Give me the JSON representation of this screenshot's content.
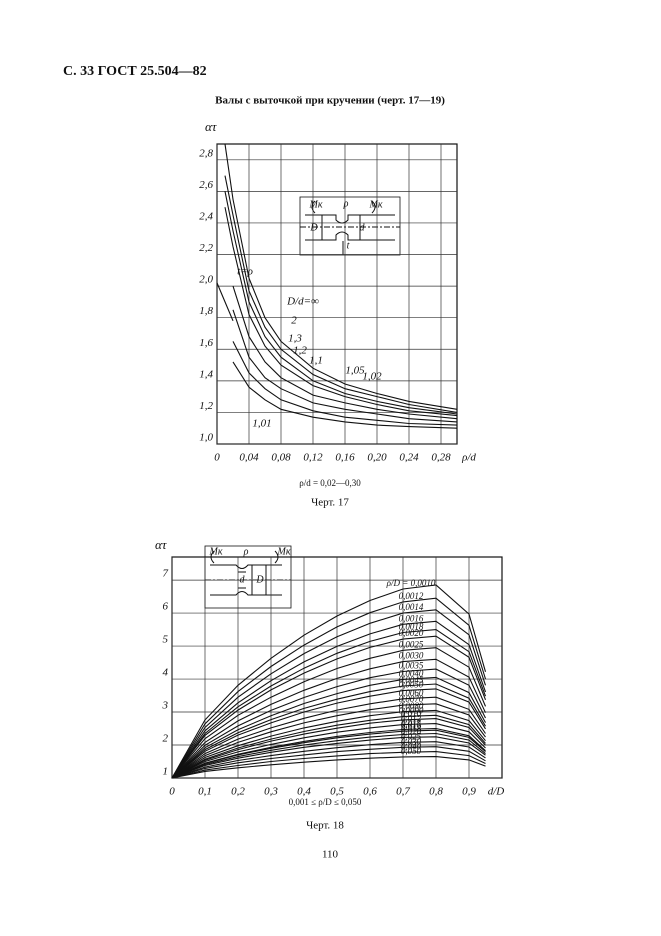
{
  "header": {
    "page_ref": "С. 33 ГОСТ 25.504—82"
  },
  "title": "Валы с выточкой при кручении (черт. 17—19)",
  "chart_data": [
    {
      "type": "line",
      "color": "#111111",
      "ylabel": "ατ",
      "xlabel": "ρ/d",
      "x": [
        0,
        0.01,
        0.02,
        0.04,
        0.06,
        0.08,
        0.12,
        0.16,
        0.2,
        0.24,
        0.3
      ],
      "xlim": [
        0,
        0.3
      ],
      "ylim": [
        1.0,
        2.9
      ],
      "xticks": [
        0,
        {
          "value": 0.04,
          "label": "0,04"
        },
        {
          "value": 0.08,
          "label": "0,08"
        },
        {
          "value": 0.12,
          "label": "0,12"
        },
        {
          "value": 0.16,
          "label": "0,16"
        },
        {
          "value": 0.2,
          "label": "0,20"
        },
        {
          "value": 0.24,
          "label": "0,24"
        },
        {
          "value": 0.28,
          "label": "0,28"
        }
      ],
      "yticks": [
        {
          "value": 1.0,
          "label": "1,0"
        },
        {
          "value": 1.2,
          "label": "1,2"
        },
        {
          "value": 1.4,
          "label": "1,4"
        },
        {
          "value": 1.6,
          "label": "1,6"
        },
        {
          "value": 1.8,
          "label": "1,8"
        },
        {
          "value": 2.0,
          "label": "2,0"
        },
        {
          "value": 2.2,
          "label": "2,2"
        },
        {
          "value": 2.4,
          "label": "2,4"
        },
        {
          "value": 2.6,
          "label": "2,6"
        },
        {
          "value": 2.8,
          "label": "2,8"
        }
      ],
      "grid": true,
      "annotations": [
        "Mк",
        "ρ",
        "Mк",
        "D",
        "d",
        "t"
      ],
      "series": [
        {
          "name": "t=ρ",
          "values": [
            2.02,
            1.9,
            1.78,
            null,
            null,
            null,
            null,
            null,
            null,
            null,
            null
          ]
        },
        {
          "name": "D/d=∞",
          "values": [
            null,
            2.9,
            2.55,
            2.05,
            1.8,
            1.65,
            1.48,
            1.38,
            1.32,
            1.27,
            1.22
          ]
        },
        {
          "name": "2",
          "values": [
            null,
            2.7,
            2.45,
            1.97,
            1.74,
            1.6,
            1.44,
            1.35,
            1.3,
            1.25,
            1.2
          ]
        },
        {
          "name": "1,3",
          "values": [
            null,
            2.6,
            2.35,
            1.9,
            1.68,
            1.55,
            1.4,
            1.32,
            1.27,
            1.23,
            1.19
          ]
        },
        {
          "name": "1,2",
          "values": [
            null,
            2.5,
            2.25,
            1.82,
            1.62,
            1.5,
            1.37,
            1.3,
            1.25,
            1.21,
            1.18
          ]
        },
        {
          "name": "1,1",
          "values": [
            null,
            null,
            2.0,
            1.68,
            1.52,
            1.42,
            1.31,
            1.26,
            1.22,
            1.19,
            1.16
          ]
        },
        {
          "name": "1,05",
          "values": [
            null,
            null,
            1.85,
            1.55,
            1.42,
            1.35,
            1.26,
            1.22,
            1.19,
            1.16,
            1.14
          ]
        },
        {
          "name": "1,02",
          "values": [
            null,
            null,
            1.65,
            1.45,
            1.35,
            1.28,
            1.21,
            1.17,
            1.15,
            1.13,
            1.12
          ]
        },
        {
          "name": "1,01",
          "values": [
            null,
            null,
            1.52,
            1.36,
            1.28,
            1.22,
            1.17,
            1.14,
            1.12,
            1.11,
            1.1
          ]
        }
      ]
    },
    {
      "type": "line",
      "color": "#111111",
      "ylabel": "ατ",
      "xlabel": "d/D",
      "x": [
        0,
        0.1,
        0.2,
        0.3,
        0.4,
        0.5,
        0.6,
        0.7,
        0.8,
        0.9,
        0.95
      ],
      "xlim": [
        0,
        1.0
      ],
      "ylim": [
        1,
        7.7
      ],
      "xticks": [
        0,
        {
          "value": 0.1,
          "label": "0,1"
        },
        {
          "value": 0.2,
          "label": "0,2"
        },
        {
          "value": 0.3,
          "label": "0,3"
        },
        {
          "value": 0.4,
          "label": "0,4"
        },
        {
          "value": 0.5,
          "label": "0,5"
        },
        {
          "value": 0.6,
          "label": "0,6"
        },
        {
          "value": 0.7,
          "label": "0,7"
        },
        {
          "value": 0.8,
          "label": "0,8"
        },
        {
          "value": 0.9,
          "label": "0,9"
        }
      ],
      "yticks": [
        1,
        2,
        3,
        4,
        5,
        6,
        7
      ],
      "grid": true,
      "annotations": [
        "Mк",
        "ρ",
        "Mк",
        "d",
        "D"
      ],
      "series": [
        {
          "name": "ρ/D = 0,0010",
          "values": [
            1,
            2.76,
            3.81,
            4.63,
            5.33,
            5.91,
            6.38,
            6.73,
            6.85,
            5.97,
            4.22
          ]
        },
        {
          "name": "0,0012",
          "values": [
            1,
            2.64,
            3.62,
            4.38,
            5.03,
            5.58,
            6.01,
            6.34,
            6.45,
            5.63,
            4.0
          ]
        },
        {
          "name": "0,0014",
          "values": [
            1,
            2.53,
            3.45,
            4.16,
            4.77,
            5.28,
            5.69,
            6.0,
            6.1,
            5.34,
            3.81
          ]
        },
        {
          "name": "0,0016",
          "values": [
            1,
            2.43,
            3.28,
            3.95,
            4.52,
            4.99,
            5.37,
            5.66,
            5.75,
            5.04,
            3.61
          ]
        },
        {
          "name": "0,0018",
          "values": [
            1,
            2.35,
            3.16,
            3.79,
            4.33,
            4.78,
            5.14,
            5.41,
            5.5,
            4.83,
            3.48
          ]
        },
        {
          "name": "0,0020",
          "values": [
            1,
            2.29,
            3.06,
            3.67,
            4.18,
            4.61,
            4.96,
            5.21,
            5.3,
            4.66,
            3.37
          ]
        },
        {
          "name": "0,0025",
          "values": [
            1,
            2.19,
            2.9,
            3.45,
            3.92,
            4.32,
            4.63,
            4.87,
            4.95,
            4.36,
            3.17
          ]
        },
        {
          "name": "0,0030",
          "values": [
            1,
            2.08,
            2.73,
            3.23,
            3.66,
            4.02,
            4.31,
            4.53,
            4.6,
            4.06,
            2.98
          ]
        },
        {
          "name": "0,0035",
          "values": [
            1,
            1.99,
            2.58,
            3.05,
            3.44,
            3.77,
            4.04,
            4.23,
            4.3,
            3.81,
            2.82
          ]
        },
        {
          "name": "0,0040",
          "values": [
            1,
            1.92,
            2.46,
            2.89,
            3.26,
            3.56,
            3.81,
            3.99,
            4.05,
            3.59,
            2.68
          ]
        },
        {
          "name": "0,0045",
          "values": [
            1,
            1.86,
            2.37,
            2.77,
            3.11,
            3.39,
            3.62,
            3.79,
            3.85,
            3.42,
            2.57
          ]
        },
        {
          "name": "0,0050",
          "values": [
            1,
            1.81,
            2.3,
            2.67,
            3.0,
            3.27,
            3.48,
            3.65,
            3.7,
            3.3,
            2.49
          ]
        },
        {
          "name": "0,0060",
          "values": [
            1,
            1.74,
            2.18,
            2.52,
            2.81,
            3.06,
            3.25,
            3.4,
            3.45,
            3.08,
            2.35
          ]
        },
        {
          "name": "0,0070",
          "values": [
            1,
            1.68,
            2.08,
            2.4,
            2.67,
            2.89,
            3.07,
            3.21,
            3.25,
            2.91,
            2.24
          ]
        },
        {
          "name": "0,0080",
          "values": [
            1,
            1.62,
            1.98,
            2.27,
            2.52,
            2.72,
            2.89,
            3.01,
            3.05,
            2.74,
            2.13
          ]
        },
        {
          "name": "0,0090",
          "values": [
            1,
            1.57,
            1.91,
            2.18,
            2.41,
            2.6,
            2.75,
            2.86,
            2.9,
            2.62,
            2.05
          ]
        },
        {
          "name": "0,010",
          "values": [
            1,
            1.54,
            1.86,
            2.12,
            2.33,
            2.51,
            2.66,
            2.76,
            2.8,
            2.53,
            1.99
          ]
        },
        {
          "name": "0,012",
          "values": [
            1,
            1.5,
            1.79,
            2.02,
            2.22,
            2.39,
            2.52,
            2.62,
            2.65,
            2.4,
            1.91
          ]
        },
        {
          "name": "0,015",
          "values": [
            1,
            1.45,
            1.72,
            1.93,
            2.11,
            2.26,
            2.38,
            2.47,
            2.5,
            2.28,
            1.83
          ]
        },
        {
          "name": "0,016",
          "values": [
            1,
            1.44,
            1.7,
            1.9,
            2.07,
            2.22,
            2.33,
            2.42,
            2.45,
            2.23,
            1.8
          ]
        },
        {
          "name": "0,018",
          "values": [
            1,
            1.41,
            1.65,
            1.84,
            2.0,
            2.13,
            2.24,
            2.32,
            2.35,
            2.15,
            1.74
          ]
        },
        {
          "name": "0,020",
          "values": [
            1,
            1.38,
            1.6,
            1.78,
            1.93,
            2.05,
            2.15,
            2.23,
            2.25,
            2.06,
            1.69
          ]
        },
        {
          "name": "0,025",
          "values": [
            1,
            1.33,
            1.53,
            1.68,
            1.81,
            1.92,
            2.01,
            2.08,
            2.1,
            1.94,
            1.61
          ]
        },
        {
          "name": "0,030",
          "values": [
            1,
            1.29,
            1.46,
            1.59,
            1.7,
            1.8,
            1.87,
            1.93,
            1.95,
            1.81,
            1.52
          ]
        },
        {
          "name": "0,040",
          "values": [
            1,
            1.24,
            1.38,
            1.5,
            1.59,
            1.67,
            1.74,
            1.78,
            1.8,
            1.68,
            1.44
          ]
        },
        {
          "name": "0,050",
          "values": [
            1,
            1.2,
            1.31,
            1.4,
            1.48,
            1.55,
            1.6,
            1.64,
            1.65,
            1.55,
            1.36
          ]
        }
      ]
    }
  ],
  "figures": [
    {
      "condition": "ρ/d = 0,02—0,30",
      "caption": "Черт. 17"
    },
    {
      "condition": "0,001 ≤ ρ/D ≤ 0,050",
      "caption": "Черт. 18"
    }
  ],
  "page_number": "110"
}
